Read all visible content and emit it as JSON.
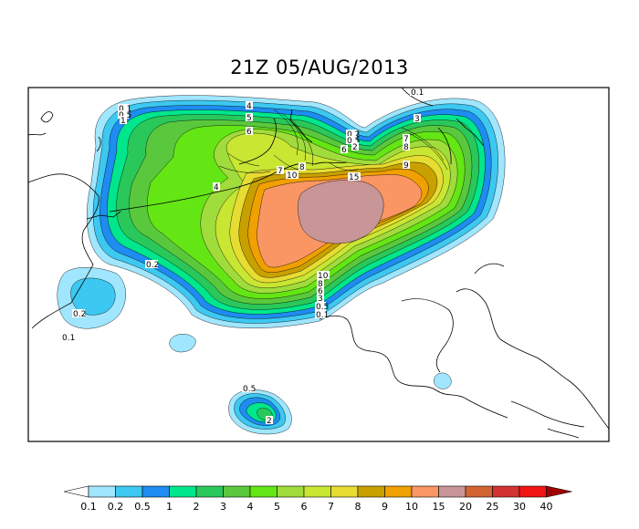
{
  "title": "21Z 05/AUG/2013",
  "contour_labels": [
    "0.1",
    "0.2",
    "0.5",
    "1",
    "2",
    "3",
    "4",
    "5",
    "6",
    "7",
    "8",
    "9",
    "10",
    "15"
  ],
  "colorbar": {
    "levels": [
      "0.1",
      "0.2",
      "0.5",
      "1",
      "2",
      "3",
      "4",
      "5",
      "6",
      "7",
      "8",
      "9",
      "10",
      "15",
      "20",
      "25",
      "30",
      "40"
    ],
    "colors": [
      "#a0e6ff",
      "#3cc8f0",
      "#1e8cf0",
      "#00e68c",
      "#2ac85a",
      "#5ac83c",
      "#64e614",
      "#a0dc3c",
      "#c8e632",
      "#e6dc32",
      "#c8a000",
      "#f0a000",
      "#fa9664",
      "#c89696",
      "#d26432",
      "#d23232",
      "#f01414",
      "#a00000"
    ],
    "low_arrow_color": "#ffffff"
  }
}
